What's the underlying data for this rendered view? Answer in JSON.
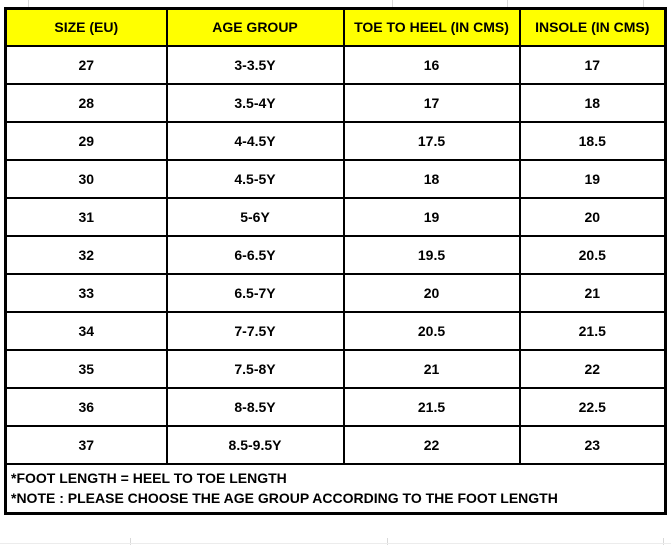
{
  "chart_data": {
    "type": "table",
    "columns": [
      "SIZE (EU)",
      "AGE GROUP",
      "TOE TO HEEL (IN CMS)",
      "INSOLE (IN CMS)"
    ],
    "rows": [
      [
        "27",
        "3-3.5Y",
        "16",
        "17"
      ],
      [
        "28",
        "3.5-4Y",
        "17",
        "18"
      ],
      [
        "29",
        "4-4.5Y",
        "17.5",
        "18.5"
      ],
      [
        "30",
        "4.5-5Y",
        "18",
        "19"
      ],
      [
        "31",
        "5-6Y",
        "19",
        "20"
      ],
      [
        "32",
        "6-6.5Y",
        "19.5",
        "20.5"
      ],
      [
        "33",
        "6.5-7Y",
        "20",
        "21"
      ],
      [
        "34",
        "7-7.5Y",
        "20.5",
        "21.5"
      ],
      [
        "35",
        "7.5-8Y",
        "21",
        "22"
      ],
      [
        "36",
        "8-8.5Y",
        "21.5",
        "22.5"
      ],
      [
        "37",
        "8.5-9.5Y",
        "22",
        "23"
      ]
    ],
    "legend_position": "none",
    "grid": "on"
  },
  "notes": {
    "line1": "*FOOT LENGTH = HEEL TO TOE LENGTH",
    "line2": "*NOTE : PLEASE CHOOSE THE AGE GROUP ACCORDING TO THE FOOT LENGTH"
  },
  "colors": {
    "header_bg": "#FFFF00",
    "border": "#000000",
    "text": "#000000",
    "gridline": "#D9D9D9"
  }
}
